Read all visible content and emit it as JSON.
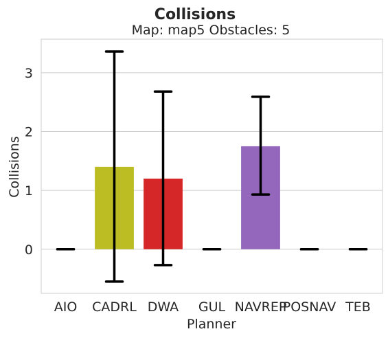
{
  "chart_data": {
    "type": "bar",
    "title": "Collisions",
    "subtitle": "Map: map5 Obstacles: 5",
    "xlabel": "Planner",
    "ylabel": "Collisions",
    "categories": [
      "AIO",
      "CADRL",
      "DWA",
      "GUL",
      "NAVREP",
      "POSNAV",
      "TEB"
    ],
    "values": [
      0,
      1.4,
      1.2,
      0,
      1.75,
      0,
      0
    ],
    "error_low": [
      0,
      -0.55,
      -0.27,
      0,
      0.93,
      0,
      0
    ],
    "error_high": [
      0,
      3.36,
      2.68,
      0,
      2.59,
      0,
      0
    ],
    "colors": [
      "#1f77b4",
      "#bcbd22",
      "#d62728",
      "#2ca02c",
      "#9467bd",
      "#8c564b",
      "#e377c2"
    ],
    "ylim": [
      -0.75,
      3.57
    ],
    "yticks": [
      0,
      1,
      2,
      3
    ],
    "grid": true,
    "legend": "none"
  }
}
